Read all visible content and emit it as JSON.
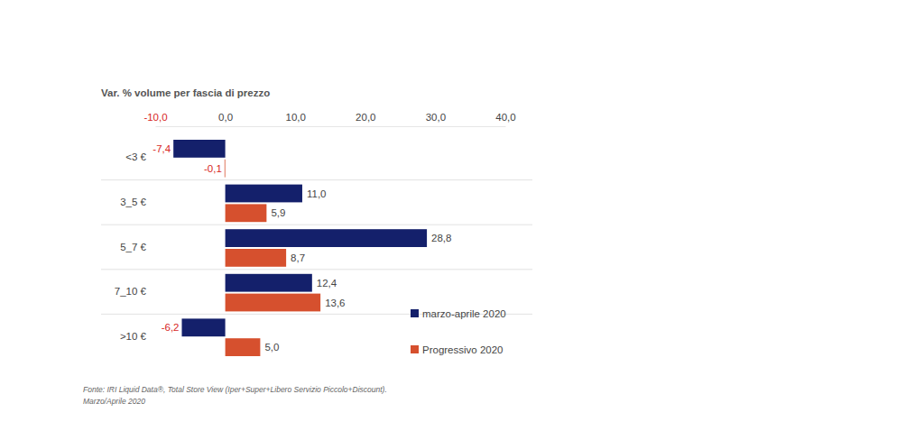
{
  "chart_data": {
    "type": "bar",
    "orientation": "horizontal",
    "title": "Var. % volume per fascia di prezzo",
    "categories": [
      "<3 €",
      "3_5 €",
      "5_7 €",
      "7_10 €",
      ">10 €"
    ],
    "series": [
      {
        "name": "marzo-aprile 2020",
        "color": "#14206b",
        "values": [
          -7.4,
          11.0,
          28.8,
          12.4,
          -6.2
        ],
        "value_labels": [
          "-7,4",
          "11,0",
          "28,8",
          "12,4",
          "-6,2"
        ]
      },
      {
        "name": "Progressivo 2020",
        "color": "#d6502e",
        "values": [
          -0.1,
          5.9,
          8.7,
          13.6,
          5.0
        ],
        "value_labels": [
          "-0,1",
          "5,9",
          "8,7",
          "13,6",
          "5,0"
        ]
      }
    ],
    "xlim": [
      -10,
      40
    ],
    "xticks": [
      {
        "value": -10,
        "label": "-10,0"
      },
      {
        "value": 0,
        "label": "0,0"
      },
      {
        "value": 10,
        "label": "10,0"
      },
      {
        "value": 20,
        "label": "20,0"
      },
      {
        "value": 30,
        "label": "30,0"
      },
      {
        "value": 40,
        "label": "40,0"
      }
    ],
    "grid": false,
    "legend": "bottom-right",
    "data_labels": true,
    "annotations": [
      "Fonte: IRI Liquid Data®, Total Store View (Iper+Super+Libero Servizio Piccolo+Discount).",
      "Marzo/Aprile 2020"
    ]
  }
}
